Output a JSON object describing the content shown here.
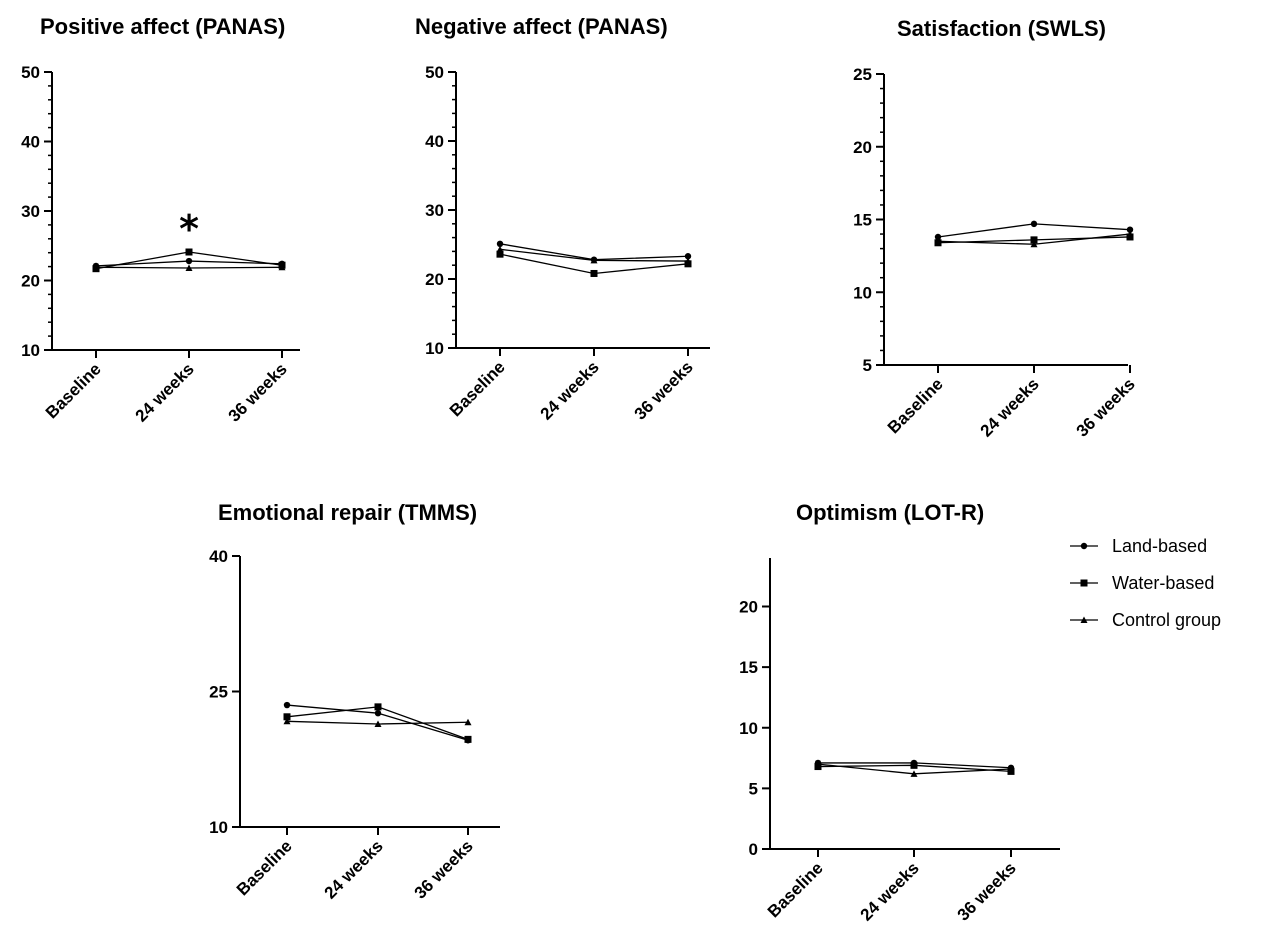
{
  "chart_data": [
    {
      "type": "line",
      "title": "Positive affect  (PANAS)",
      "categories": [
        "Baseline",
        "24 weeks",
        "36 weeks"
      ],
      "yticks": [
        10,
        20,
        30,
        40,
        50
      ],
      "ylim": [
        10,
        50
      ],
      "minor_step": 2,
      "annotations": [
        {
          "text": "*",
          "category": "24 weeks"
        }
      ],
      "series": [
        {
          "name": "Land-based",
          "values": [
            22.1,
            22.8,
            22.4
          ]
        },
        {
          "name": "Water-based",
          "values": [
            21.7,
            24.1,
            22.2
          ]
        },
        {
          "name": "Control group",
          "values": [
            21.9,
            21.8,
            21.9
          ]
        }
      ]
    },
    {
      "type": "line",
      "title": "Negative affect (PANAS)",
      "categories": [
        "Baseline",
        "24 weeks",
        "36 weeks"
      ],
      "yticks": [
        10,
        20,
        30,
        40,
        50
      ],
      "ylim": [
        10,
        50
      ],
      "minor_step": 2,
      "series": [
        {
          "name": "Land-based",
          "values": [
            25.1,
            22.8,
            23.3
          ]
        },
        {
          "name": "Water-based",
          "values": [
            23.6,
            20.8,
            22.2
          ]
        },
        {
          "name": "Control group",
          "values": [
            24.3,
            22.7,
            22.6
          ]
        }
      ]
    },
    {
      "type": "line",
      "title": "Satisfaction  (SWLS)",
      "categories": [
        "Baseline",
        "24 weeks",
        "36 weeks"
      ],
      "yticks": [
        5,
        10,
        15,
        20,
        25
      ],
      "ylim": [
        5,
        25
      ],
      "minor_step": 1,
      "series": [
        {
          "name": "Land-based",
          "values": [
            13.8,
            14.7,
            14.3
          ]
        },
        {
          "name": "Water-based",
          "values": [
            13.4,
            13.6,
            13.8
          ]
        },
        {
          "name": "Control group",
          "values": [
            13.5,
            13.3,
            14.0
          ]
        }
      ]
    },
    {
      "type": "line",
      "title": "Emotional repair (TMMS)",
      "categories": [
        "Baseline",
        "24 weeks",
        "36 weeks"
      ],
      "yticks": [
        10,
        25,
        40
      ],
      "ylim": [
        10,
        40
      ],
      "minor_step": null,
      "series": [
        {
          "name": "Land-based",
          "values": [
            23.5,
            22.6,
            19.6
          ]
        },
        {
          "name": "Water-based",
          "values": [
            22.2,
            23.3,
            19.7
          ]
        },
        {
          "name": "Control group",
          "values": [
            21.7,
            21.4,
            21.6
          ]
        }
      ]
    },
    {
      "type": "line",
      "title": "Optimism (LOT-R)",
      "categories": [
        "Baseline",
        "24 weeks",
        "36 weeks"
      ],
      "yticks": [
        0,
        5,
        10,
        15,
        20
      ],
      "ylim": [
        0,
        24
      ],
      "minor_step": null,
      "legend_position": "right",
      "series": [
        {
          "name": "Land-based",
          "values": [
            7.1,
            7.1,
            6.7
          ]
        },
        {
          "name": "Water-based",
          "values": [
            6.8,
            6.9,
            6.4
          ]
        },
        {
          "name": "Control group",
          "values": [
            7.0,
            6.2,
            6.6
          ]
        }
      ]
    }
  ],
  "legend": {
    "items": [
      {
        "label": "Land-based",
        "marker": "dot"
      },
      {
        "label": "Water-based",
        "marker": "square"
      },
      {
        "label": "Control group",
        "marker": "triangle"
      }
    ]
  }
}
